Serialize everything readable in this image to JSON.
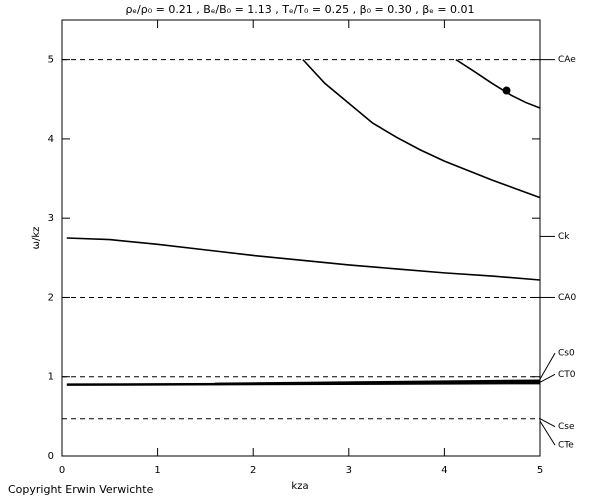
{
  "chart_data": {
    "type": "line",
    "title": "ρₑ/ρ₀ = 0.21 , Bₑ/B₀ = 1.13 , Tₑ/T₀ = 0.25 , β₀ = 0.30 , βₑ = 0.01",
    "x_label": "kza",
    "y_label": "ω/kz",
    "xlim": [
      0,
      5
    ],
    "ylim": [
      0,
      5.5
    ],
    "xticks": [
      0,
      1,
      2,
      3,
      4,
      5
    ],
    "yticks": [
      0,
      1,
      2,
      3,
      4,
      5
    ],
    "reference_lines": [
      5,
      2,
      1,
      0.47
    ],
    "annotations": [
      {
        "label": "CAe",
        "value": 5
      },
      {
        "label": "Ck",
        "value": 2.77
      },
      {
        "label": "CA0",
        "value": 2
      },
      {
        "label": "Cs0",
        "value": 0.97
      },
      {
        "label": "CT0",
        "value": 0.93
      },
      {
        "label": "Cse",
        "value": 0.47
      },
      {
        "label": "CTe",
        "value": 0.44
      }
    ],
    "series": [
      {
        "color": "#000000",
        "x": [
          0.05,
          0.5,
          1,
          1.5,
          2,
          2.5,
          3,
          3.5,
          4,
          4.5,
          5
        ],
        "values": [
          2.75,
          2.73,
          2.67,
          2.6,
          2.53,
          2.47,
          2.41,
          2.36,
          2.31,
          2.27,
          2.22
        ]
      },
      {
        "color": "#000000",
        "x": [
          2.52,
          2.75,
          3,
          3.25,
          3.5,
          3.75,
          4,
          4.25,
          4.5,
          4.75,
          5
        ],
        "values": [
          5.0,
          4.7,
          4.45,
          4.2,
          4.02,
          3.86,
          3.72,
          3.6,
          3.48,
          3.37,
          3.26
        ]
      },
      {
        "color": "#000000",
        "x": [
          4.12,
          4.3,
          4.5,
          4.7,
          4.85,
          5
        ],
        "values": [
          5.0,
          4.86,
          4.7,
          4.55,
          4.46,
          4.39
        ]
      },
      {
        "color": "#000000",
        "x": [
          0.05,
          5
        ],
        "values": [
          0.9,
          0.92
        ]
      },
      {
        "color": "#000000",
        "x": [
          1.6,
          5
        ],
        "values": [
          0.91,
          0.95
        ]
      }
    ],
    "marker": {
      "x": 4.65,
      "value": 4.61
    },
    "footer": "Copyright  Erwin Verwichte"
  }
}
